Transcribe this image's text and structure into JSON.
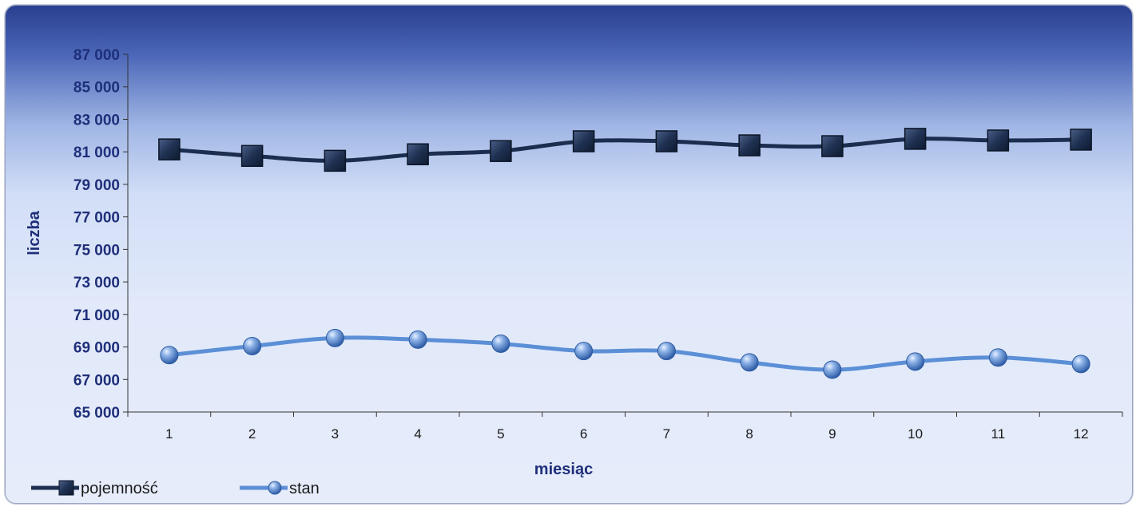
{
  "chart_data": {
    "type": "line",
    "title": "",
    "xlabel": "miesiąc",
    "ylabel": "liczba",
    "categories": [
      "1",
      "2",
      "3",
      "4",
      "5",
      "6",
      "7",
      "8",
      "9",
      "10",
      "11",
      "12"
    ],
    "y_ticks": [
      "65 000",
      "67 000",
      "69 000",
      "71 000",
      "73 000",
      "75 000",
      "77 000",
      "79 000",
      "81 000",
      "83 000",
      "85 000",
      "87 000"
    ],
    "ylim": [
      65000,
      87000
    ],
    "grid": false,
    "legend_position": "bottom-left",
    "series": [
      {
        "name": "pojemność",
        "marker": "square",
        "color": "#1c2e4f",
        "values": [
          81150,
          80750,
          80450,
          80850,
          81050,
          81650,
          81650,
          81400,
          81350,
          81800,
          81700,
          81750
        ]
      },
      {
        "name": "stan",
        "marker": "circle",
        "color": "#5b8fd6",
        "values": [
          68500,
          69050,
          69550,
          69450,
          69200,
          68750,
          68750,
          68050,
          67600,
          68100,
          68350,
          67950
        ]
      }
    ]
  }
}
